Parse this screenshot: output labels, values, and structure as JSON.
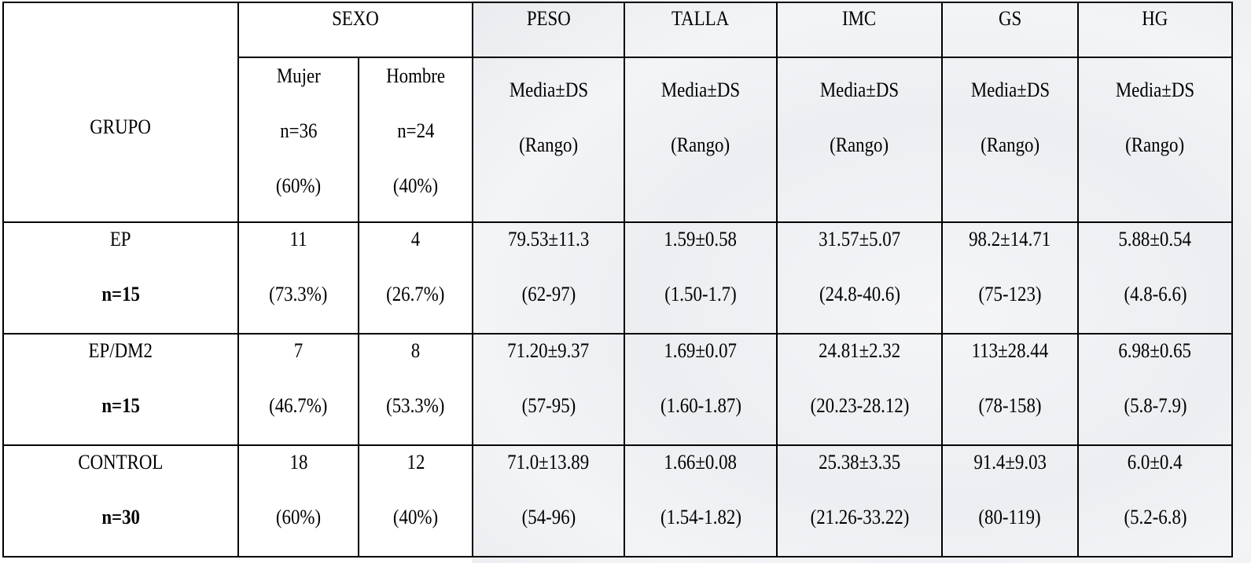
{
  "header": {
    "grupo": "GRUPO",
    "sexo": "SEXO",
    "columns": [
      "PESO",
      "TALLA",
      "IMC",
      "GS",
      "HG"
    ],
    "mujer": {
      "label": "Mujer",
      "n": "n=36",
      "pct": "(60%)"
    },
    "hombre": {
      "label": "Hombre",
      "n": "n=24",
      "pct": "(40%)"
    },
    "stat_line1": "Media±DS",
    "stat_line2": "(Rango)"
  },
  "rows": [
    {
      "group": "EP",
      "n": "n=15",
      "mujer": [
        "11",
        "(73.3%)"
      ],
      "hombre": [
        "4",
        "(26.7%)"
      ],
      "peso": [
        "79.53±11.3",
        "(62-97)"
      ],
      "talla": [
        "1.59±0.58",
        "(1.50-1.7)"
      ],
      "imc": [
        "31.57±5.07",
        "(24.8-40.6)"
      ],
      "gs": [
        "98.2±14.71",
        "(75-123)"
      ],
      "hg": [
        "5.88±0.54",
        "(4.8-6.6)"
      ]
    },
    {
      "group": "EP/DM2",
      "n": "n=15",
      "mujer": [
        "7",
        "(46.7%)"
      ],
      "hombre": [
        "8",
        "(53.3%)"
      ],
      "peso": [
        "71.20±9.37",
        "(57-95)"
      ],
      "talla": [
        "1.69±0.07",
        "(1.60-1.87)"
      ],
      "imc": [
        "24.81±2.32",
        "(20.23-28.12)"
      ],
      "gs": [
        "113±28.44",
        "(78-158)"
      ],
      "hg": [
        "6.98±0.65",
        "(5.8-7.9)"
      ]
    },
    {
      "group": "CONTROL",
      "n": "n=30",
      "mujer": [
        "18",
        "(60%)"
      ],
      "hombre": [
        "12",
        "(40%)"
      ],
      "peso": [
        "71.0±13.89",
        "(54-96)"
      ],
      "talla": [
        "1.66±0.08",
        "(1.54-1.82)"
      ],
      "imc": [
        "25.38±3.35",
        "(21.26-33.22)"
      ],
      "gs": [
        "91.4±9.03",
        "(80-119)"
      ],
      "hg": [
        "6.0±0.4",
        "(5.2-6.8)"
      ]
    }
  ]
}
